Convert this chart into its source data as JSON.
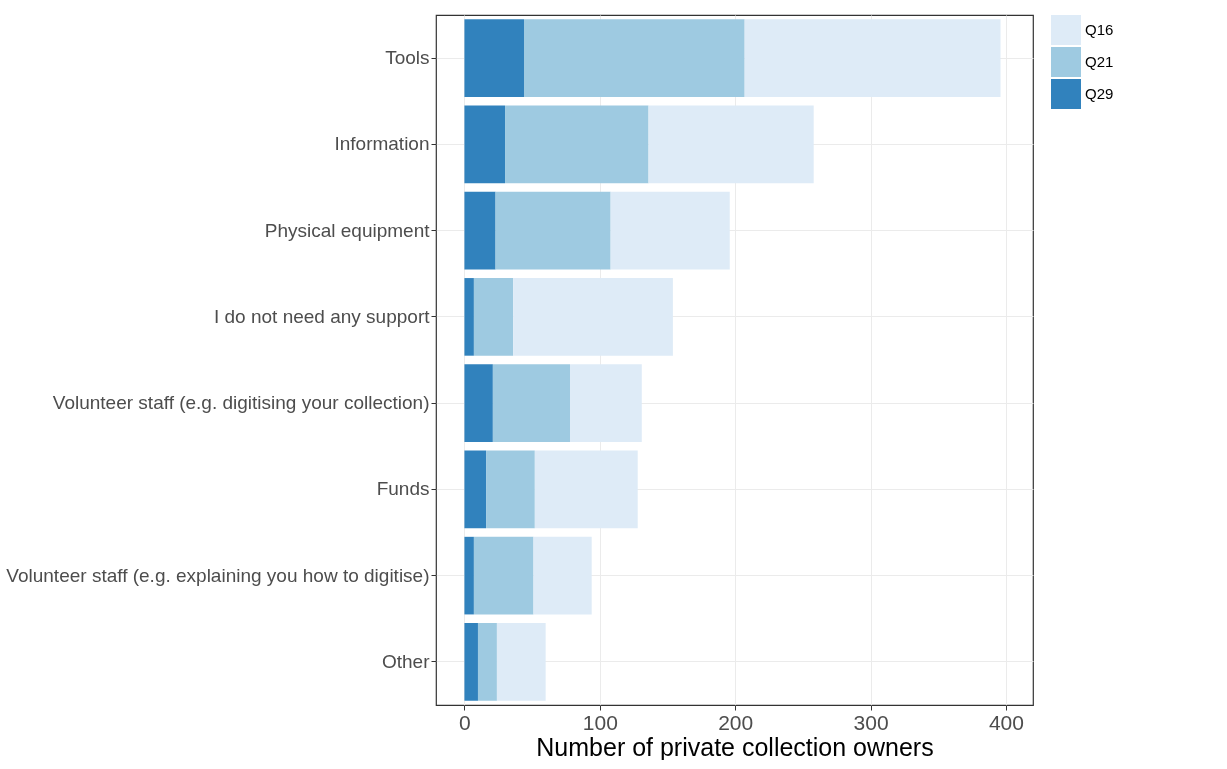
{
  "chart_data": {
    "type": "bar",
    "orientation": "horizontal",
    "stacked": true,
    "xlabel": "Number of private collection owners",
    "categories": [
      "Tools",
      "Information",
      "Physical equipment",
      "I do not need any support",
      "Volunteer staff (e.g. digitising your collection)",
      "Funds",
      "Volunteer staff (e.g. explaining you how to digitise)",
      "Other"
    ],
    "series": [
      {
        "name": "Q29",
        "color": "#3182bd",
        "values": [
          44,
          30,
          23,
          7,
          21,
          16,
          7,
          10
        ]
      },
      {
        "name": "Q21",
        "color": "#9ecae1",
        "values": [
          163,
          106,
          85,
          29,
          57,
          36,
          44,
          14
        ]
      },
      {
        "name": "Q16",
        "color": "#deebf7",
        "values": [
          189,
          122,
          88,
          118,
          53,
          76,
          43,
          36
        ]
      }
    ],
    "xlim": [
      -21,
      420
    ],
    "xticks": [
      0,
      100,
      200,
      300,
      400
    ],
    "grid": true,
    "legend": "right"
  }
}
